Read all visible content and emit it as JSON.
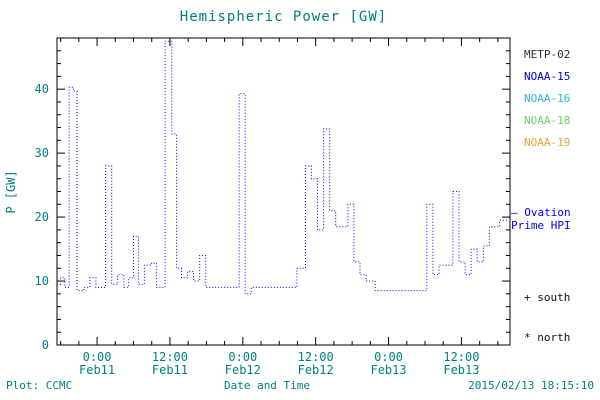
{
  "header": {
    "title": "Hemispheric Power [GW]"
  },
  "footer": {
    "plot_source": "Plot: CCMC",
    "timestamp": "2015/02/13 18:15:10"
  },
  "colors": {
    "axis_text": "#008080",
    "axis_line": "#000000",
    "line": "#0000ff"
  },
  "legend": {
    "satellites": [
      {
        "label": "METP-02",
        "color": "#303030"
      },
      {
        "label": "NOAA-15",
        "color": "#0000dd"
      },
      {
        "label": "NOAA-16",
        "color": "#2bb7e0"
      },
      {
        "label": "NOAA-18",
        "color": "#6fce6f"
      },
      {
        "label": "NOAA-19",
        "color": "#f0a030"
      }
    ],
    "line_legend": {
      "marker": "—",
      "label_line1": "Ovation",
      "label_line2": "Prime HPI",
      "color": "#0000ff"
    },
    "markers": [
      {
        "symbol": "+",
        "label": "south"
      },
      {
        "symbol": "*",
        "label": "north"
      }
    ]
  },
  "chart_data": {
    "type": "line",
    "title": "Hemispheric Power [GW]",
    "xlabel": "Date and Time",
    "ylabel": "P [GW]",
    "ylim": [
      0,
      48
    ],
    "yticks": [
      0,
      10,
      20,
      30,
      40
    ],
    "x_unit": "hours since 2015-02-11 00:00",
    "xlim": [
      -6.6,
      68
    ],
    "xticks": [
      {
        "t": 0,
        "time": "0:00",
        "date": "Feb11"
      },
      {
        "t": 12,
        "time": "12:00",
        "date": "Feb11"
      },
      {
        "t": 24,
        "time": "0:00",
        "date": "Feb12"
      },
      {
        "t": 36,
        "time": "12:00",
        "date": "Feb12"
      },
      {
        "t": 48,
        "time": "0:00",
        "date": "Feb13"
      },
      {
        "t": 60,
        "time": "12:00",
        "date": "Feb13"
      }
    ],
    "grid": false,
    "legend_position": "right",
    "series": [
      {
        "name": "Ovation Prime HPI",
        "color": "#0000ff",
        "line_style": "dotted",
        "step": true,
        "points": [
          [
            -6.6,
            9.5
          ],
          [
            -6.0,
            10.5
          ],
          [
            -5.3,
            9.0
          ],
          [
            -4.6,
            40.3
          ],
          [
            -3.9,
            39.7
          ],
          [
            -3.3,
            8.5
          ],
          [
            -2.2,
            9.0
          ],
          [
            -1.2,
            10.5
          ],
          [
            -0.2,
            9.0
          ],
          [
            1.4,
            28.0
          ],
          [
            2.4,
            9.5
          ],
          [
            3.4,
            11.0
          ],
          [
            4.4,
            9.0
          ],
          [
            5.2,
            10.5
          ],
          [
            6.0,
            17.0
          ],
          [
            6.8,
            9.5
          ],
          [
            7.8,
            12.5
          ],
          [
            9.0,
            12.8
          ],
          [
            9.8,
            9.0
          ],
          [
            11.2,
            47.5
          ],
          [
            12.3,
            33.0
          ],
          [
            13.1,
            12.0
          ],
          [
            13.9,
            10.5
          ],
          [
            14.9,
            11.5
          ],
          [
            15.9,
            10.0
          ],
          [
            16.9,
            14.0
          ],
          [
            17.9,
            9.0
          ],
          [
            23.4,
            39.3
          ],
          [
            24.4,
            8.0
          ],
          [
            25.4,
            9.0
          ],
          [
            32.9,
            12.0
          ],
          [
            34.3,
            28.0
          ],
          [
            35.3,
            26.0
          ],
          [
            36.3,
            18.0
          ],
          [
            37.3,
            33.8
          ],
          [
            38.3,
            21.0
          ],
          [
            39.3,
            18.5
          ],
          [
            41.3,
            22.0
          ],
          [
            42.3,
            13.0
          ],
          [
            43.3,
            11.0
          ],
          [
            44.3,
            10.0
          ],
          [
            45.8,
            8.5
          ],
          [
            54.3,
            22.0
          ],
          [
            55.3,
            11.0
          ],
          [
            56.3,
            12.5
          ],
          [
            58.6,
            24.0
          ],
          [
            59.6,
            13.0
          ],
          [
            60.6,
            11.0
          ],
          [
            61.6,
            15.0
          ],
          [
            62.6,
            13.0
          ],
          [
            63.6,
            15.5
          ],
          [
            64.6,
            18.5
          ],
          [
            66.3,
            19.5
          ],
          [
            67.6,
            19.5
          ]
        ]
      }
    ]
  }
}
